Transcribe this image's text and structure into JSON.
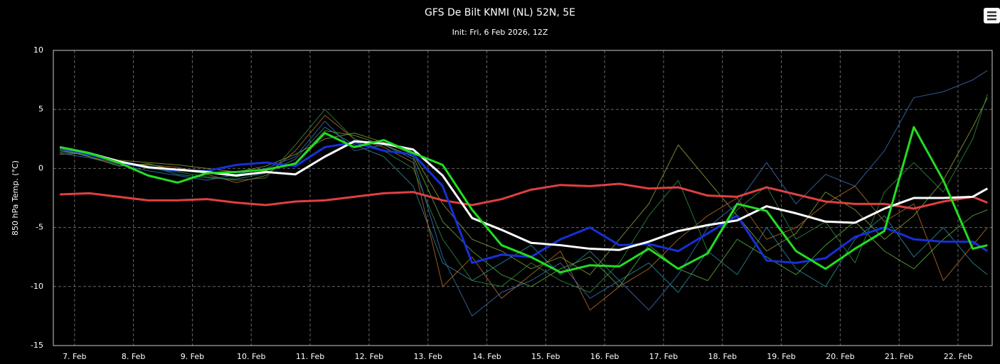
{
  "chart_data": {
    "type": "line",
    "title": "GFS De Bilt KNMI (NL) 52N, 5E",
    "subtitle": "Init: Fri, 6 Feb 2026, 12Z",
    "y_label": "850 hPa Temp. (°C)",
    "x": [
      6.75,
      7.25,
      7.75,
      8.25,
      8.75,
      9.25,
      9.75,
      10.25,
      10.75,
      11.25,
      11.75,
      12.25,
      12.75,
      13.25,
      13.75,
      14.25,
      14.75,
      15.25,
      15.75,
      16.25,
      16.75,
      17.25,
      17.75,
      18.25,
      18.75,
      19.25,
      19.75,
      20.25,
      20.75,
      21.25,
      21.75,
      22.25,
      22.5
    ],
    "xlim": [
      6.64,
      22.58
    ],
    "xticks": [
      {
        "value": 7,
        "label": "7. Feb"
      },
      {
        "value": 8,
        "label": "8. Feb"
      },
      {
        "value": 9,
        "label": "9. Feb"
      },
      {
        "value": 10,
        "label": "10. Feb"
      },
      {
        "value": 11,
        "label": "11. Feb"
      },
      {
        "value": 12,
        "label": "12. Feb"
      },
      {
        "value": 13,
        "label": "13. Feb"
      },
      {
        "value": 14,
        "label": "14. Feb"
      },
      {
        "value": 15,
        "label": "15. Feb"
      },
      {
        "value": 16,
        "label": "16. Feb"
      },
      {
        "value": 17,
        "label": "17. Feb"
      },
      {
        "value": 18,
        "label": "18. Feb"
      },
      {
        "value": 19,
        "label": "19. Feb"
      },
      {
        "value": 20,
        "label": "20. Feb"
      },
      {
        "value": 21,
        "label": "21. Feb"
      },
      {
        "value": 22,
        "label": "22. Feb"
      }
    ],
    "ylim": [
      -15,
      10
    ],
    "yticks": [
      -15,
      -10,
      -5,
      0,
      5,
      10
    ],
    "grid": true,
    "series": [
      {
        "color": "#2a8a9a",
        "line_width": 1,
        "values": [
          1.5,
          1.1,
          0.6,
          0.2,
          -0.5,
          -0.8,
          -0.9,
          -0.4,
          0.8,
          3.5,
          2.0,
          1.0,
          -1.5,
          -8.0,
          -9.5,
          -8.0,
          -6.5,
          -9.0,
          -7.0,
          -9.5,
          -8.0,
          -10.5,
          -7.0,
          -9.0,
          -5.0,
          -8.5,
          -10.0,
          -6.0,
          -4.0,
          -7.5,
          -5.0,
          -8.0,
          -9.0
        ]
      },
      {
        "color": "#b36b2a",
        "line_width": 1,
        "values": [
          1.6,
          1.0,
          0.4,
          0.3,
          0.1,
          -0.5,
          -1.2,
          -0.6,
          1.5,
          4.5,
          2.5,
          1.8,
          0.5,
          -10.0,
          -7.5,
          -11.0,
          -9.0,
          -7.0,
          -12.0,
          -10.0,
          -8.5,
          -6.0,
          -4.0,
          -2.5,
          -6.0,
          -5.0,
          -3.0,
          -1.5,
          -4.5,
          -3.0,
          -9.5,
          -6.5,
          -5.0
        ]
      },
      {
        "color": "#8a9a3a",
        "line_width": 1,
        "values": [
          1.2,
          1.3,
          0.7,
          0.5,
          0.3,
          0.0,
          -0.3,
          0.2,
          1.2,
          2.5,
          3.0,
          2.2,
          1.2,
          -3.0,
          -6.0,
          -7.0,
          -8.5,
          -7.5,
          -9.0,
          -6.0,
          -3.0,
          2.0,
          -1.0,
          -4.0,
          -7.0,
          -5.5,
          -2.0,
          -3.5,
          -6.0,
          -4.0,
          -1.0,
          3.5,
          6.0
        ]
      },
      {
        "color": "#2e8b3e",
        "line_width": 1,
        "values": [
          1.4,
          1.2,
          0.5,
          0.0,
          -0.3,
          -0.7,
          -1.0,
          -0.8,
          2.0,
          5.0,
          2.5,
          1.5,
          0.0,
          -6.0,
          -9.5,
          -10.0,
          -8.0,
          -9.5,
          -10.5,
          -8.0,
          -4.0,
          -1.0,
          -7.0,
          -3.5,
          -1.5,
          -6.0,
          -4.5,
          -8.0,
          -2.0,
          0.5,
          -2.0,
          2.5,
          6.3
        ]
      },
      {
        "color": "#3a6eb5",
        "line_width": 1,
        "values": [
          1.3,
          0.9,
          0.3,
          -0.2,
          -0.6,
          -1.0,
          -0.5,
          0.0,
          1.0,
          4.0,
          1.5,
          2.0,
          0.8,
          -7.5,
          -12.5,
          -10.5,
          -9.5,
          -8.0,
          -11.0,
          -9.5,
          -12.0,
          -9.0,
          -5.0,
          -3.0,
          0.5,
          -3.0,
          -0.5,
          -1.5,
          1.5,
          6.0,
          6.5,
          7.5,
          8.3
        ]
      },
      {
        "color": "#5aaa3a",
        "line_width": 1,
        "values": [
          1.7,
          1.0,
          0.2,
          0.4,
          -0.2,
          -0.4,
          -0.7,
          -0.2,
          0.5,
          3.2,
          2.8,
          2.0,
          1.0,
          -4.5,
          -7.0,
          -9.0,
          -10.0,
          -8.5,
          -7.5,
          -10.0,
          -6.5,
          -8.5,
          -9.5,
          -6.0,
          -7.5,
          -9.0,
          -6.5,
          -4.5,
          -7.0,
          -8.5,
          -6.0,
          -4.0,
          -3.5
        ]
      },
      {
        "color": "#e04040",
        "line_width": 3,
        "values": [
          -2.2,
          -2.1,
          -2.4,
          -2.7,
          -2.7,
          -2.6,
          -2.9,
          -3.1,
          -2.8,
          -2.7,
          -2.4,
          -2.1,
          -2.0,
          -2.7,
          -3.1,
          -2.6,
          -1.8,
          -1.4,
          -1.5,
          -1.3,
          -1.7,
          -1.6,
          -2.3,
          -2.4,
          -1.6,
          -2.2,
          -2.8,
          -3.0,
          -3.0,
          -3.4,
          -2.8,
          -2.4,
          -2.9
        ]
      },
      {
        "color": "#1530d8",
        "line_width": 3,
        "values": [
          1.7,
          1.2,
          0.5,
          0.1,
          -0.2,
          -0.2,
          0.3,
          0.5,
          0.2,
          1.8,
          2.2,
          1.5,
          1.2,
          -1.5,
          -8.0,
          -7.3,
          -7.5,
          -6.0,
          -5.0,
          -6.5,
          -6.4,
          -7.0,
          -5.5,
          -4.0,
          -7.8,
          -8.0,
          -7.6,
          -5.8,
          -5.0,
          -6.0,
          -6.2,
          -6.2,
          -7.0
        ]
      },
      {
        "color": "#ffffff",
        "line_width": 3,
        "values": [
          1.8,
          1.3,
          0.6,
          0.1,
          -0.1,
          -0.3,
          -0.6,
          -0.3,
          -0.5,
          1.0,
          2.3,
          2.1,
          1.6,
          -0.6,
          -4.2,
          -5.2,
          -6.3,
          -6.5,
          -6.8,
          -6.9,
          -6.2,
          -5.3,
          -4.8,
          -4.4,
          -3.2,
          -3.8,
          -4.5,
          -4.6,
          -3.4,
          -2.5,
          -2.5,
          -2.4,
          -1.7
        ]
      },
      {
        "color": "#22dd22",
        "line_width": 3,
        "values": [
          1.8,
          1.3,
          0.5,
          -0.6,
          -1.2,
          -0.4,
          -0.3,
          -0.1,
          0.4,
          3.0,
          1.8,
          2.4,
          1.3,
          0.3,
          -3.5,
          -6.5,
          -7.5,
          -8.8,
          -8.2,
          -8.3,
          -6.8,
          -8.5,
          -7.2,
          -3.0,
          -3.6,
          -7.0,
          -8.5,
          -6.8,
          -5.3,
          3.5,
          -1.0,
          -6.8,
          -6.5
        ]
      }
    ]
  }
}
